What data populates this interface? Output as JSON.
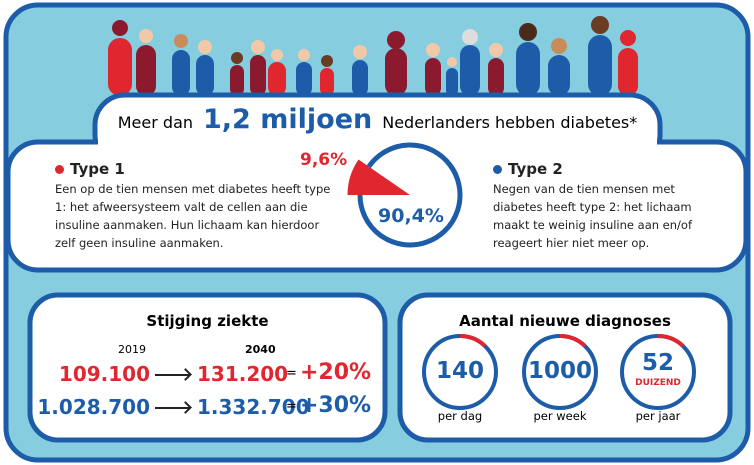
{
  "header": {
    "prefix": "Meer dan",
    "highlight": "1,2 miljoen",
    "suffix": "Nederlanders hebben diabetes*"
  },
  "chart_data": {
    "type": "pie",
    "categories": [
      "Type 1",
      "Type 2"
    ],
    "values": [
      9.6,
      90.4
    ],
    "value_labels": [
      "9,6%",
      "90,4%"
    ],
    "colors": [
      "#e0262f",
      "#1d5ca8"
    ]
  },
  "type1": {
    "text": "Een op de tien mensen met diabetes heeft type 1: het afweersysteem valt de cellen aan die insuline aanmaken. Hun lichaam kan hierdoor zelf geen insuline aanmaken."
  },
  "type2": {
    "text": "Negen van de tien mensen met diabetes heeft type 2: het lichaam maakt te weinig insuline aan en/of reageert hier niet meer op."
  },
  "increase": {
    "title": "Stijging ziekte",
    "years": [
      "2019",
      "2040"
    ],
    "rows": [
      [
        "109.100",
        "131.200",
        "=",
        "+20%"
      ],
      [
        "1.028.700",
        "1.332.700",
        "=",
        "+30%"
      ]
    ]
  },
  "diagnoses": {
    "title": "Aantal nieuwe diagnoses",
    "items": [
      {
        "value": "140",
        "unit": "per dag"
      },
      {
        "value": "1000",
        "unit": "per week"
      },
      {
        "value": "52",
        "note": "DUIZEND",
        "unit": "per jaar"
      }
    ]
  }
}
